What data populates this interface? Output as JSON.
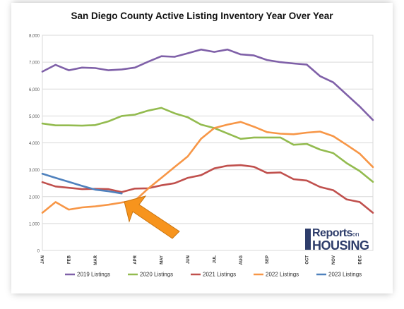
{
  "chart_data": {
    "type": "line",
    "title": "San Diego County Active Listing Inventory Year Over Year",
    "xlabel": "",
    "ylabel": "",
    "ylim": [
      0,
      8000
    ],
    "yticks": [
      "0",
      "1,000",
      "2,000",
      "3,000",
      "4,000",
      "5,000",
      "6,000",
      "7,000",
      "8,000"
    ],
    "month_labels": [
      "JAN",
      "FEB",
      "MAR",
      "APR",
      "MAY",
      "JUN",
      "JUL",
      "AUG",
      "SEP",
      "OCT",
      "NOV",
      "DEC"
    ],
    "month_positions": [
      0,
      2,
      4,
      7,
      9,
      11,
      13,
      15,
      17,
      20,
      22,
      24
    ],
    "grid": true,
    "legend": "bottom",
    "series": [
      {
        "name": "2019 Listings",
        "color": "#7f60a8",
        "values": [
          6650,
          6900,
          6700,
          6800,
          6780,
          6700,
          6730,
          6800,
          7020,
          7220,
          7200,
          7330,
          7470,
          7380,
          7470,
          7290,
          7250,
          7080,
          7000,
          6950,
          6910,
          6480,
          6250,
          5800,
          5350,
          4850
        ]
      },
      {
        "name": "2020 Listings",
        "color": "#93bb4f",
        "values": [
          4720,
          4650,
          4650,
          4640,
          4660,
          4800,
          5000,
          5050,
          5200,
          5300,
          5100,
          4950,
          4680,
          4550,
          4350,
          4150,
          4200,
          4200,
          4200,
          3930,
          3960,
          3750,
          3620,
          3250,
          2950,
          2550
        ]
      },
      {
        "name": "2021 Listings",
        "color": "#c0504d",
        "values": [
          2540,
          2380,
          2330,
          2280,
          2290,
          2280,
          2170,
          2300,
          2310,
          2420,
          2500,
          2700,
          2800,
          3050,
          3150,
          3170,
          3110,
          2880,
          2900,
          2650,
          2600,
          2360,
          2240,
          1900,
          1800,
          1400
        ]
      },
      {
        "name": "2022 Listings",
        "color": "#f79646",
        "values": [
          1400,
          1800,
          1520,
          1600,
          1640,
          1700,
          1780,
          1850,
          2300,
          2700,
          3100,
          3500,
          4150,
          4550,
          4680,
          4780,
          4600,
          4400,
          4340,
          4320,
          4380,
          4420,
          4250,
          3930,
          3600,
          3100
        ]
      },
      {
        "name": "2023 Listings",
        "color": "#4f81bd",
        "values": [
          2850,
          2700,
          2550,
          2400,
          2260,
          2200,
          2120
        ]
      }
    ]
  },
  "logo": {
    "line1": "Reports",
    "line1_suffix": "on",
    "line2": "HOUSING"
  }
}
